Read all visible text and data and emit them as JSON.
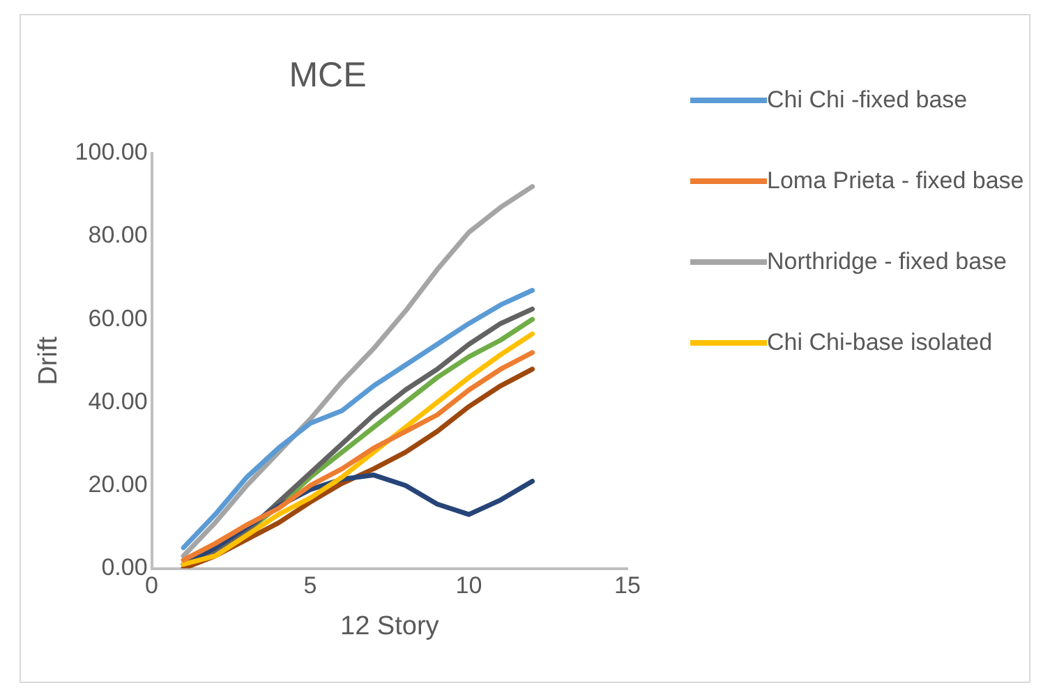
{
  "chart_data": {
    "type": "line",
    "title": "MCE",
    "xlabel": "12 Story",
    "ylabel": "Drift",
    "x": [
      1,
      2,
      3,
      4,
      5,
      6,
      7,
      8,
      9,
      10,
      11,
      12
    ],
    "xlim": [
      0,
      15
    ],
    "xticks": [
      0,
      5,
      10,
      15
    ],
    "ylim": [
      0,
      100
    ],
    "yticks": [
      {
        "value": 0,
        "label": "0.00"
      },
      {
        "value": 20,
        "label": "20.00"
      },
      {
        "value": 40,
        "label": "40.00"
      },
      {
        "value": 60,
        "label": "60.00"
      },
      {
        "value": 80,
        "label": "80.00"
      },
      {
        "value": 100,
        "label": "100.00"
      }
    ],
    "grid": false,
    "legend": "right",
    "marker": "none",
    "line_style": "solid",
    "series": [
      {
        "name": "Chi Chi -fixed base",
        "color": "#5b9bd5",
        "values": [
          5,
          13,
          22,
          29,
          35,
          38,
          44,
          49,
          54,
          59,
          63.5,
          67
        ]
      },
      {
        "name": "Loma Prieta - fixed base",
        "color": "#ed7d31",
        "values": [
          2,
          6,
          10.5,
          14.5,
          20,
          24,
          29,
          33,
          37,
          43,
          48,
          52
        ]
      },
      {
        "name": "Northridge - fixed base",
        "color": "#a5a5a5",
        "values": [
          3,
          11,
          20,
          28,
          36,
          45,
          53,
          62,
          72,
          81,
          87,
          92
        ]
      },
      {
        "name": "Chi Chi-base isolated",
        "color": "#ffc000",
        "values": [
          1,
          3,
          8,
          13,
          17,
          22,
          28,
          34,
          40,
          46,
          51.5,
          56.5
        ]
      },
      {
        "color": "#264478",
        "values": [
          1,
          5,
          10,
          15,
          19,
          21.5,
          22.5,
          20,
          15.5,
          13,
          16.5,
          21
        ]
      },
      {
        "color": "#9e480e",
        "values": [
          0,
          3,
          7,
          11,
          16,
          20.5,
          24,
          28,
          33,
          39,
          44,
          48
        ]
      },
      {
        "color": "#636363",
        "values": [
          1,
          4,
          9,
          16,
          23,
          30,
          37,
          43,
          48,
          54,
          59,
          62.5
        ]
      },
      {
        "color": "#70ad47",
        "values": [
          1,
          4,
          9,
          15,
          22,
          28,
          34,
          40,
          46,
          51,
          55,
          60
        ]
      }
    ]
  }
}
